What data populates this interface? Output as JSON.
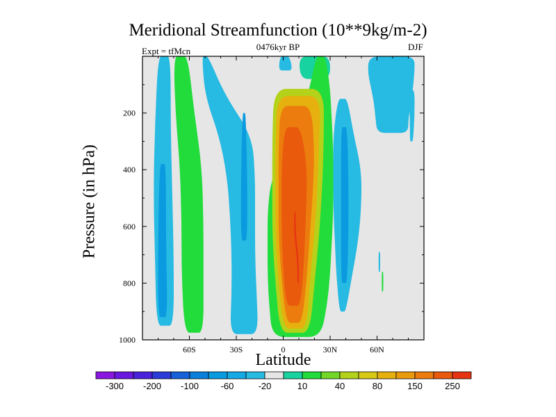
{
  "chart_data": {
    "type": "heatmap",
    "title": "Meridional Streamfunction (10**9kg/m-2)",
    "subtitle": "0476kyr BP",
    "experiment_label": "Expt = tfMcn",
    "season_label": "DJF",
    "xlabel": "Latitude",
    "ylabel": "Pressure (in hPa)",
    "x_range": [
      -90,
      90
    ],
    "y_range": [
      1000,
      0
    ],
    "y_reversed": true,
    "x_ticks": [
      {
        "value": -60,
        "label": "60S"
      },
      {
        "value": -30,
        "label": "30S"
      },
      {
        "value": 0,
        "label": "0"
      },
      {
        "value": 30,
        "label": "30N"
      },
      {
        "value": 60,
        "label": "60N"
      }
    ],
    "y_ticks": [
      200,
      400,
      600,
      800,
      1000
    ],
    "background_color": "#e6e6e6",
    "colorbar": {
      "labels": [
        "-300",
        "-200",
        "-100",
        "-60",
        "-20",
        "10",
        "40",
        "80",
        "150",
        "250"
      ],
      "label_after_bin": [
        0,
        2,
        4,
        6,
        8,
        10,
        12,
        14,
        16,
        18
      ],
      "colors": [
        "#8a17e0",
        "#6a17e0",
        "#4a22dc",
        "#2b3cd8",
        "#1660d8",
        "#0a80dc",
        "#0a9ae0",
        "#15a9e6",
        "#27bae2",
        "#e6e6e6",
        "#18d2a0",
        "#22dc3c",
        "#72d728",
        "#b4d219",
        "#d7c814",
        "#e6b10f",
        "#ea9a0d",
        "#eb7c0d",
        "#e95a0d",
        "#e63312"
      ]
    },
    "contour_regions": [
      {
        "level": "-20",
        "color": "#27bae2",
        "shape": "band",
        "x": [
          [
            -80,
            -72
          ],
          [
            -82,
            -72
          ],
          [
            -83,
            -71
          ],
          [
            -82,
            -70
          ],
          [
            -81,
            -70
          ]
        ],
        "y_range": [
          0,
          950
        ]
      },
      {
        "level": "-60",
        "color": "#0a9ae0",
        "shape": "band",
        "x": [
          [
            -79,
            -75
          ],
          [
            -80,
            -75
          ],
          [
            -80,
            -74
          ]
        ],
        "y_range": [
          380,
          920
        ]
      },
      {
        "level": "40",
        "color": "#22dc3c",
        "shape": "band",
        "x": [
          [
            -70,
            -61
          ],
          [
            -69,
            -57
          ],
          [
            -66,
            -52
          ],
          [
            -65,
            -51
          ],
          [
            -65,
            -51
          ],
          [
            -63,
            -51
          ]
        ],
        "y_range": [
          0,
          975
        ]
      },
      {
        "level": "-20",
        "color": "#27bae2",
        "shape": "band",
        "x": [
          [
            -52,
            -48
          ],
          [
            -50,
            -37
          ],
          [
            -41,
            -20
          ],
          [
            -36,
            -18
          ],
          [
            -34,
            -18
          ],
          [
            -33,
            -18
          ],
          [
            -33,
            -17
          ],
          [
            -34,
            -16
          ]
        ],
        "y_range": [
          0,
          980
        ]
      },
      {
        "level": "-60",
        "color": "#0a9ae0",
        "shape": "band",
        "x": [
          [
            -26,
            -24
          ],
          [
            -27,
            -23
          ],
          [
            -27,
            -23
          ]
        ],
        "y_range": [
          200,
          650
        ]
      },
      {
        "level": "-20",
        "color": "#27bae2",
        "shape": "band",
        "x": [
          [
            -2,
            4
          ],
          [
            -3,
            6
          ]
        ],
        "y_range": [
          0,
          50
        ]
      },
      {
        "level": "10",
        "color": "#18d2a0",
        "shape": "band",
        "x": [
          [
            10,
            30
          ],
          [
            11,
            30
          ]
        ],
        "y_range": [
          0,
          80
        ]
      },
      {
        "level": "40",
        "color": "#22dc3c",
        "shape": "band",
        "x": [
          [
            21,
            27
          ],
          [
            17,
            30
          ],
          [
            11,
            31
          ],
          [
            1,
            32
          ],
          [
            -8,
            32
          ],
          [
            -10,
            32
          ],
          [
            -10,
            31
          ],
          [
            -10,
            30
          ],
          [
            -9,
            28
          ],
          [
            -7,
            24
          ]
        ],
        "y_range": [
          0,
          990
        ]
      },
      {
        "level": "80",
        "color": "#b4d219",
        "shape": "band",
        "x": [
          [
            -6,
            26
          ],
          [
            -7,
            26
          ],
          [
            -7,
            25
          ],
          [
            -7,
            23
          ],
          [
            -5,
            20
          ],
          [
            -2,
            17
          ]
        ],
        "y_range": [
          115,
          975
        ]
      },
      {
        "level": "150",
        "color": "#e6b10f",
        "shape": "band",
        "x": [
          [
            -4,
            24
          ],
          [
            -5,
            23
          ],
          [
            -5,
            22
          ],
          [
            -5,
            20
          ],
          [
            -3,
            17
          ],
          [
            0,
            15
          ]
        ],
        "y_range": [
          140,
          960
        ]
      },
      {
        "level": "200",
        "color": "#eb7c0d",
        "shape": "band",
        "x": [
          [
            -2,
            18
          ],
          [
            -3,
            20
          ],
          [
            -3,
            19
          ],
          [
            -3,
            17
          ],
          [
            -1,
            15
          ],
          [
            2,
            12
          ]
        ],
        "y_range": [
          175,
          940
        ]
      },
      {
        "level": "250",
        "color": "#e95a0d",
        "shape": "band",
        "x": [
          [
            1,
            11
          ],
          [
            -1,
            15
          ],
          [
            -1,
            15
          ],
          [
            -1,
            14
          ],
          [
            0,
            13
          ],
          [
            2,
            11
          ]
        ],
        "y_range": [
          250,
          880
        ]
      },
      {
        "level": "300",
        "color": "#e63312",
        "shape": "band",
        "x": [
          [
            7,
            8
          ],
          [
            7,
            8
          ],
          [
            9,
            10
          ],
          [
            9,
            10
          ]
        ],
        "y_range": [
          550,
          800
        ]
      },
      {
        "level": "-20",
        "color": "#27bae2",
        "shape": "band",
        "x": [
          [
            35,
            41
          ],
          [
            32,
            45
          ],
          [
            32,
            50
          ],
          [
            32,
            50
          ],
          [
            33,
            48
          ],
          [
            34,
            44
          ],
          [
            36,
            40
          ]
        ],
        "y_range": [
          150,
          900
        ]
      },
      {
        "level": "-60",
        "color": "#0a9ae0",
        "shape": "band",
        "x": [
          [
            37,
            41
          ],
          [
            37,
            42
          ],
          [
            37,
            41
          ]
        ],
        "y_range": [
          250,
          800
        ]
      },
      {
        "level": "-20",
        "color": "#27bae2",
        "shape": "band",
        "x": [
          [
            55,
            84
          ],
          [
            54,
            84
          ],
          [
            56,
            83
          ],
          [
            58,
            82
          ],
          [
            59,
            80
          ],
          [
            60,
            80
          ]
        ],
        "y_range": [
          0,
          270
        ]
      },
      {
        "level": "-20",
        "color": "#27bae2",
        "shape": "band",
        "x": [
          [
            80,
            84
          ],
          [
            81,
            84
          ],
          [
            81,
            83
          ]
        ],
        "y_range": [
          120,
          300
        ]
      },
      {
        "level": "-20",
        "color": "#27bae2",
        "shape": "band",
        "x": [
          [
            61,
            62
          ],
          [
            61,
            62
          ]
        ],
        "y_range": [
          690,
          760
        ]
      },
      {
        "level": "40",
        "color": "#22dc3c",
        "shape": "band",
        "x": [
          [
            63,
            64
          ],
          [
            63,
            64
          ]
        ],
        "y_range": [
          760,
          830
        ]
      }
    ]
  }
}
